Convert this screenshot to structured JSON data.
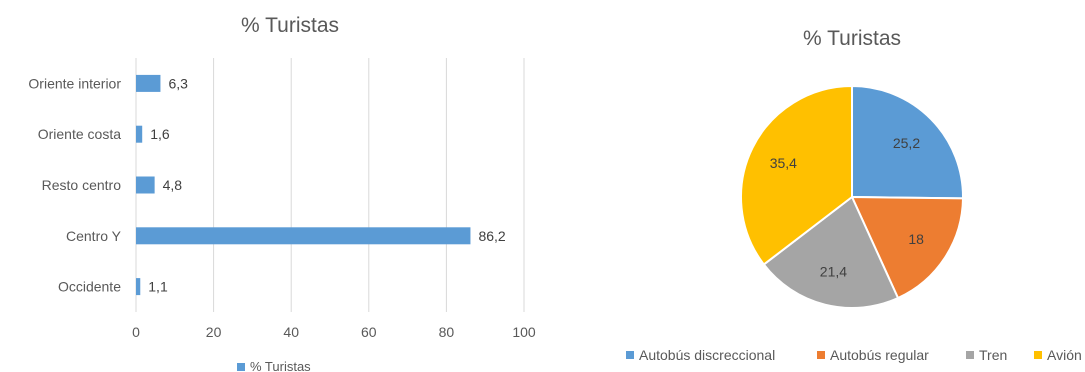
{
  "chart_data": [
    {
      "type": "bar",
      "orientation": "horizontal",
      "title": "% Turistas",
      "categories": [
        "Oriente interior",
        "Oriente costa",
        "Resto centro",
        "Centro Y",
        "Occidente"
      ],
      "series": [
        {
          "name": "% Turistas",
          "values": [
            6.3,
            1.6,
            4.8,
            86.2,
            1.1
          ],
          "color": "#5B9BD5"
        }
      ],
      "data_labels": [
        "6,3",
        "1,6",
        "4,8",
        "86,2",
        "1,1"
      ],
      "xlim": [
        0,
        100
      ],
      "x_ticks": [
        0,
        20,
        40,
        60,
        80,
        100
      ],
      "grid": "vertical",
      "legend": "bottom",
      "legend_label": "% Turistas"
    },
    {
      "type": "pie",
      "title": "% Turistas",
      "categories": [
        "Autobús discreccional",
        "Autobús regular",
        "Tren",
        "Avión"
      ],
      "values": [
        25.2,
        18,
        21.4,
        35.4
      ],
      "data_labels": [
        "25,2",
        "18",
        "21,4",
        "35,4"
      ],
      "colors": [
        "#5B9BD5",
        "#ED7D31",
        "#A5A5A5",
        "#FFC000"
      ],
      "legend": "bottom"
    }
  ]
}
